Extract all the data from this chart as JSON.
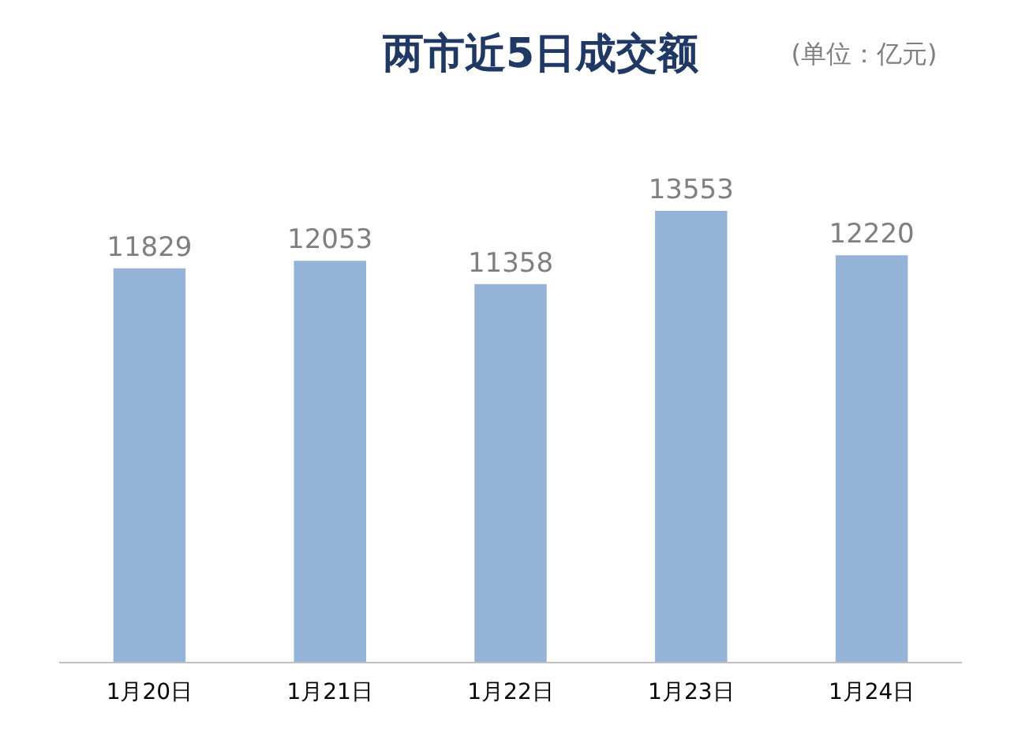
{
  "chart_data": {
    "type": "bar",
    "title": "两市近5日成交额",
    "annotations": [
      "(单位：亿元)"
    ],
    "categories": [
      "1月20日",
      "1月21日",
      "1月22日",
      "1月23日",
      "1月24日"
    ],
    "values": [
      11829,
      12053,
      11358,
      13553,
      12220
    ],
    "color": "#95b3d7",
    "data_labels": true,
    "grid": false
  }
}
